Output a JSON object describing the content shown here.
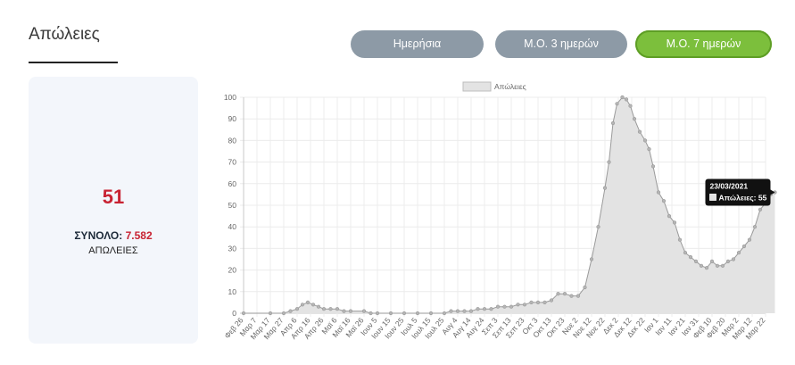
{
  "page": {
    "title": "Απώλειες"
  },
  "toggles": [
    {
      "label": "Ημερήσια",
      "active": false
    },
    {
      "label": "Μ.Ο. 3 ημερών",
      "active": false
    },
    {
      "label": "Μ.Ο. 7 ημερών",
      "active": true
    }
  ],
  "summary": {
    "value": "51",
    "total_label": "ΣΥΝΟΛΟ:",
    "total_value": "7.582",
    "caption": "ΑΠΩΛΕΙΕΣ"
  },
  "colors": {
    "accent_red": "#c82333",
    "active_green": "#7cbf3c",
    "inactive_gray": "#8d9aa6",
    "series_fill": "#e3e3e3",
    "series_line": "#9a9a9a"
  },
  "tooltip": {
    "date": "23/03/2021",
    "label": "Απώλειες: 55"
  },
  "chart_data": {
    "type": "area",
    "legend": [
      "Απώλειες"
    ],
    "legend_position": "top",
    "grid": true,
    "ylim": [
      0,
      100
    ],
    "yticks": [
      0,
      10,
      20,
      30,
      40,
      50,
      60,
      70,
      80,
      90,
      100
    ],
    "x_tick_labels": [
      "Φεβ 26",
      "Μαρ 7",
      "Μαρ 17",
      "Μαρ 27",
      "Απρ 6",
      "Απρ 16",
      "Απρ 26",
      "Μαϊ 6",
      "Μαϊ 16",
      "Μαϊ 26",
      "Ιουν 5",
      "Ιουν 15",
      "Ιουν 25",
      "Ιουλ 5",
      "Ιουλ 15",
      "Ιουλ 25",
      "Αυγ 4",
      "Αυγ 14",
      "Αυγ 24",
      "Σεπ 3",
      "Σεπ 13",
      "Σεπ 23",
      "Οκτ 3",
      "Οκτ 13",
      "Οκτ 23",
      "Νοε 2",
      "Νοε 12",
      "Νοε 22",
      "Δεκ 2",
      "Δεκ 12",
      "Δεκ 22",
      "Ιαν 1",
      "Ιαν 11",
      "Ιαν 21",
      "Ιαν 31",
      "Φεβ 10",
      "Φεβ 20",
      "Μαρ 2",
      "Μαρ 12",
      "Μαρ 22"
    ],
    "series": [
      {
        "name": "Απώλειες",
        "points": [
          [
            0,
            0
          ],
          [
            2,
            0
          ],
          [
            3,
            0
          ],
          [
            3.5,
            1
          ],
          [
            4,
            2
          ],
          [
            4.4,
            4
          ],
          [
            4.8,
            5
          ],
          [
            5.2,
            4
          ],
          [
            5.6,
            3
          ],
          [
            6,
            2
          ],
          [
            6.5,
            2
          ],
          [
            7,
            2
          ],
          [
            7.5,
            1
          ],
          [
            8,
            1
          ],
          [
            9,
            1
          ],
          [
            9.5,
            0
          ],
          [
            10,
            0
          ],
          [
            11,
            0
          ],
          [
            12,
            0
          ],
          [
            13,
            0
          ],
          [
            14,
            0
          ],
          [
            15,
            0
          ],
          [
            15.5,
            1
          ],
          [
            16,
            1
          ],
          [
            16.5,
            1
          ],
          [
            17,
            1
          ],
          [
            17.5,
            2
          ],
          [
            18,
            2
          ],
          [
            18.5,
            2
          ],
          [
            19,
            3
          ],
          [
            19.5,
            3
          ],
          [
            20,
            3
          ],
          [
            20.5,
            4
          ],
          [
            21,
            4
          ],
          [
            21.5,
            5
          ],
          [
            22,
            5
          ],
          [
            22.5,
            5
          ],
          [
            23,
            6
          ],
          [
            23.5,
            9
          ],
          [
            24,
            9
          ],
          [
            24.5,
            8
          ],
          [
            25,
            8
          ],
          [
            25.5,
            12
          ],
          [
            26,
            25
          ],
          [
            26.5,
            40
          ],
          [
            27,
            58
          ],
          [
            27.3,
            70
          ],
          [
            27.6,
            88
          ],
          [
            27.9,
            97
          ],
          [
            28.3,
            100
          ],
          [
            28.6,
            99
          ],
          [
            28.9,
            96
          ],
          [
            29.2,
            90
          ],
          [
            29.6,
            84
          ],
          [
            30,
            80
          ],
          [
            30.3,
            76
          ],
          [
            30.6,
            68
          ],
          [
            31,
            56
          ],
          [
            31.4,
            52
          ],
          [
            31.8,
            45
          ],
          [
            32.2,
            42
          ],
          [
            32.6,
            34
          ],
          [
            33,
            28
          ],
          [
            33.4,
            26
          ],
          [
            33.8,
            24
          ],
          [
            34.2,
            22
          ],
          [
            34.6,
            21
          ],
          [
            35,
            24
          ],
          [
            35.4,
            22
          ],
          [
            35.8,
            22
          ],
          [
            36.2,
            24
          ],
          [
            36.6,
            25
          ],
          [
            37,
            28
          ],
          [
            37.4,
            31
          ],
          [
            37.8,
            34
          ],
          [
            38.2,
            40
          ],
          [
            38.6,
            48
          ],
          [
            39,
            51
          ],
          [
            39.4,
            55
          ],
          [
            39.7,
            56
          ]
        ]
      }
    ]
  }
}
